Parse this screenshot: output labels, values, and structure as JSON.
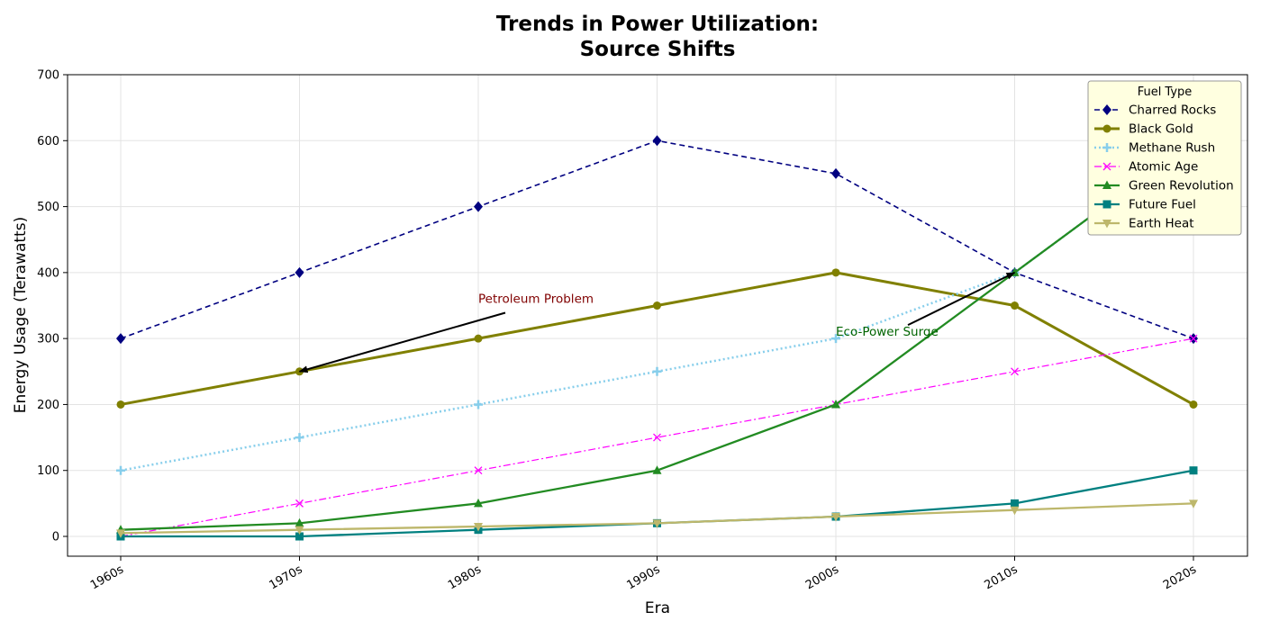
{
  "chart_data": {
    "type": "line",
    "title": [
      "Trends in Power Utilization:",
      "Source Shifts"
    ],
    "xlabel": "Era",
    "ylabel": "Energy Usage (Terawatts)",
    "categories": [
      "1960s",
      "1970s",
      "1980s",
      "1990s",
      "2000s",
      "2010s",
      "2020s"
    ],
    "ylim": [
      -30,
      700
    ],
    "yticks": [
      0,
      100,
      200,
      300,
      400,
      500,
      600,
      700
    ],
    "grid": true,
    "legend": {
      "title": "Fuel Type",
      "placement": "top-right",
      "background": "#ffffe0"
    },
    "series": [
      {
        "name": "Charred Rocks",
        "values": [
          300,
          400,
          500,
          600,
          550,
          400,
          300
        ],
        "color": "#000080",
        "dash": "6,4",
        "width": 1.6,
        "marker": "diamond"
      },
      {
        "name": "Black Gold",
        "values": [
          200,
          250,
          300,
          350,
          400,
          350,
          200
        ],
        "color": "#808000",
        "dash": "",
        "width": 3,
        "marker": "circle"
      },
      {
        "name": "Methane Rush",
        "values": [
          100,
          150,
          200,
          250,
          300,
          400,
          600
        ],
        "color": "#87ceeb",
        "dash": "2,3",
        "width": 2.5,
        "marker": "plus"
      },
      {
        "name": "Atomic Age",
        "values": [
          0,
          50,
          100,
          150,
          200,
          250,
          300
        ],
        "color": "#ff00ff",
        "dash": "8,3,2,3",
        "width": 1.2,
        "marker": "x"
      },
      {
        "name": "Green Revolution",
        "values": [
          10,
          20,
          50,
          100,
          200,
          400,
          600
        ],
        "color": "#228b22",
        "dash": "",
        "width": 2.3,
        "marker": "triangle"
      },
      {
        "name": "Future Fuel",
        "values": [
          0,
          0,
          10,
          20,
          30,
          50,
          100
        ],
        "color": "#008080",
        "dash": "",
        "width": 2.3,
        "marker": "square"
      },
      {
        "name": "Earth Heat",
        "values": [
          5,
          10,
          15,
          20,
          30,
          40,
          50
        ],
        "color": "#bdb76b",
        "dash": "",
        "width": 2.3,
        "marker": "triangle-down"
      }
    ],
    "annotations": [
      {
        "text": "Petroleum Problem",
        "color": "#800000",
        "text_x": 2.0,
        "text_y": 350,
        "target_x": 1.0,
        "target_y": 250
      },
      {
        "text": "Eco-Power Surge",
        "color": "#006400",
        "text_x": 4.0,
        "text_y": 300,
        "target_x": 5.0,
        "target_y": 400
      }
    ]
  }
}
